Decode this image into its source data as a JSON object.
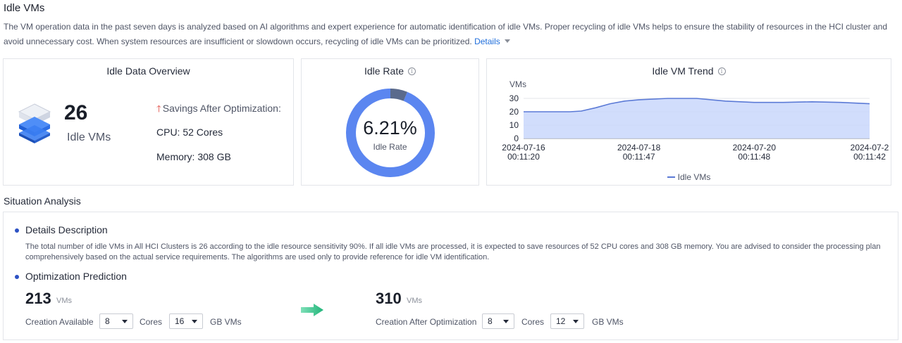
{
  "page": {
    "title": "Idle VMs",
    "intro": "The VM operation data in the past seven days is analyzed based on AI algorithms and expert experience for automatic identification of idle VMs. Proper recycling of idle VMs helps to ensure the stability of resources in the HCI cluster and avoid unnecessary cost. When system resources are insufficient or slowdown occurs, recycling of idle VMs can be prioritized.",
    "details_link": "Details"
  },
  "overview": {
    "title": "Idle Data Overview",
    "count": "26",
    "count_label": "Idle VMs",
    "savings_title": "Savings After Optimization:",
    "cpu": "CPU: 52 Cores",
    "memory": "Memory: 308 GB"
  },
  "idle_rate": {
    "title": "Idle Rate",
    "value_text": "6.21%",
    "label": "Idle Rate",
    "fraction": 0.0621,
    "color_main": "#5b86f0",
    "color_idle": "#5a6a8c"
  },
  "trend": {
    "title": "Idle VM Trend",
    "legend": "Idle VMs",
    "line_color": "#5b7ad6",
    "fill_color": "#c9d7fb"
  },
  "chart_data": {
    "type": "area",
    "title": "Idle VM Trend",
    "ylabel": "VMs",
    "ylim": [
      0,
      30
    ],
    "yticks": [
      "30",
      "20",
      "10",
      "0"
    ],
    "xtick_labels": [
      [
        "2024-07-16",
        "00:11:20"
      ],
      [
        "2024-07-18",
        "00:11:47"
      ],
      [
        "2024-07-20",
        "00:11:48"
      ],
      [
        "2024-07-2",
        "00:11:42"
      ]
    ],
    "x": [
      0,
      0.5,
      0.8,
      1.0,
      1.25,
      1.5,
      1.75,
      2.0,
      2.5,
      3.0,
      3.5,
      4.0,
      4.5,
      5.0,
      5.5,
      6.0
    ],
    "series": [
      {
        "name": "Idle VMs",
        "values": [
          20,
          20,
          20,
          20.5,
          23,
          26,
          28,
          29,
          30,
          30,
          28,
          27,
          27,
          27.5,
          27,
          26
        ]
      }
    ],
    "x_range": [
      0,
      6
    ],
    "legend_position": "bottom",
    "grid": true
  },
  "analysis": {
    "section_title": "Situation Analysis",
    "details_title": "Details Description",
    "details_text": "The total number of idle VMs in All HCI Clusters is 26 according to the idle resource sensitivity 90%. If all idle VMs are processed, it is expected to save resources of 52 CPU cores and 308 GB memory. You are advised to consider the processing plan comprehensively based on the actual service requirements. The algorithms are used only to provide reference for idle VM identification.",
    "prediction_title": "Optimization Prediction",
    "current": {
      "count": "213",
      "unit": "VMs",
      "label": "Creation Available",
      "cores": "8",
      "cores_label": "Cores",
      "memory": "16",
      "memory_label": "GB VMs"
    },
    "optimized": {
      "count": "310",
      "unit": "VMs",
      "label": "Creation After Optimization",
      "cores": "8",
      "cores_label": "Cores",
      "memory": "12",
      "memory_label": "GB VMs"
    }
  }
}
